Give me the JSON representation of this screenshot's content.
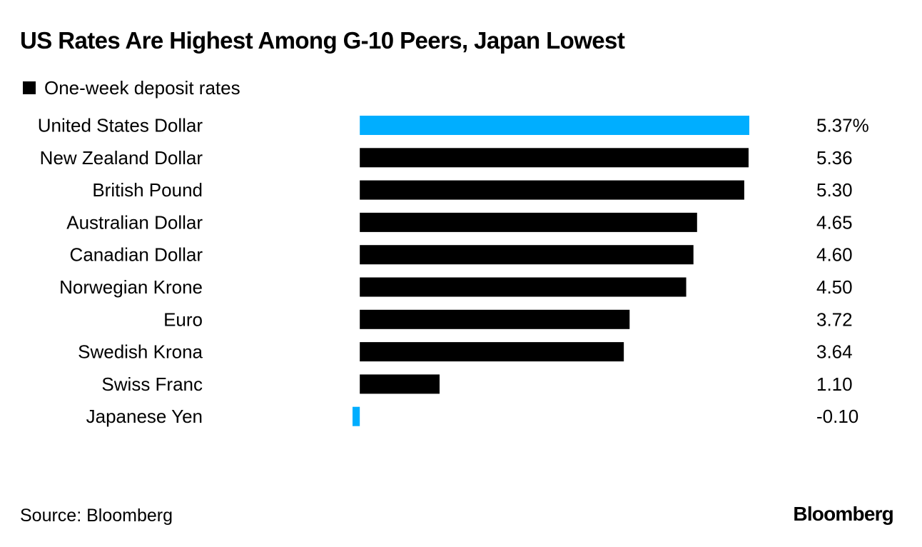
{
  "title": "US Rates Are Highest Among G-10 Peers, Japan Lowest",
  "legend_label": "One-week deposit rates",
  "source": "Source: Bloomberg",
  "brand": "Bloomberg",
  "colors": {
    "highlight": "#00aeff",
    "default": "#000000"
  },
  "chart_data": {
    "type": "bar",
    "orientation": "horizontal",
    "title": "US Rates Are Highest Among G-10 Peers, Japan Lowest",
    "series_name": "One-week deposit rates",
    "categories": [
      "United States Dollar",
      "New Zealand Dollar",
      "British Pound",
      "Australian Dollar",
      "Canadian Dollar",
      "Norwegian Krone",
      "Euro",
      "Swedish Krona",
      "Swiss Franc",
      "Japanese Yen"
    ],
    "values": [
      5.37,
      5.36,
      5.3,
      4.65,
      4.6,
      4.5,
      3.72,
      3.64,
      1.1,
      -0.1
    ],
    "value_labels": [
      "5.37%",
      "5.36",
      "5.30",
      "4.65",
      "4.60",
      "4.50",
      "3.72",
      "3.64",
      "1.10",
      "-0.10"
    ],
    "highlighted": [
      true,
      false,
      false,
      false,
      false,
      false,
      false,
      false,
      false,
      true
    ],
    "xlim": [
      -0.1,
      5.37
    ],
    "grid": false,
    "xlabel": "",
    "ylabel": ""
  }
}
